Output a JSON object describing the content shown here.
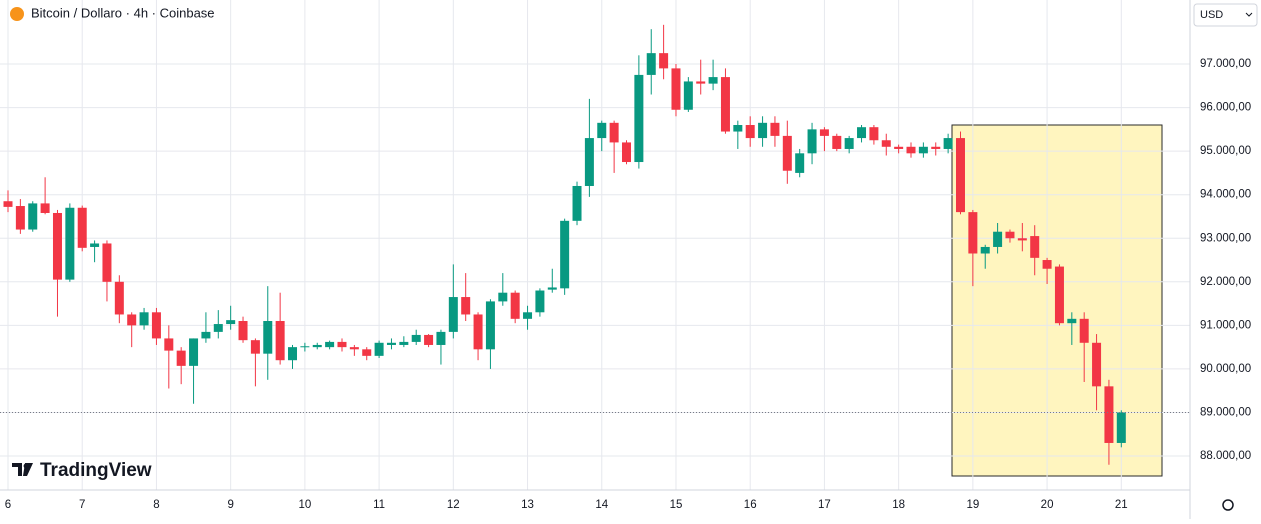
{
  "chart_data": {
    "type": "candlestick",
    "title": "Bitcoin / Dollaro · 4h · Coinbase",
    "currency": "USD",
    "brand": "TradingView",
    "categories": [
      "6",
      null,
      null,
      null,
      null,
      null,
      "7",
      null,
      null,
      null,
      null,
      null,
      "8",
      null,
      null,
      null,
      null,
      null,
      "9",
      null,
      null,
      null,
      null,
      null,
      "10",
      null,
      null,
      null,
      null,
      null,
      "11",
      null,
      null,
      null,
      null,
      null,
      "12",
      null,
      null,
      null,
      null,
      null,
      "13",
      null,
      null,
      null,
      null,
      null,
      "14",
      null,
      null,
      null,
      null,
      null,
      "15",
      null,
      null,
      null,
      null,
      null,
      "16",
      null,
      null,
      null,
      null,
      null,
      "17",
      null,
      null,
      null,
      null,
      null,
      "18",
      null,
      null,
      null,
      null,
      null,
      "19",
      null,
      null,
      null,
      null,
      null,
      "20",
      null,
      null,
      null,
      null,
      null,
      "21"
    ],
    "open": [
      93850,
      93740,
      93200,
      93800,
      93580,
      92050,
      93700,
      92800,
      92880,
      92000,
      91250,
      91000,
      91300,
      90700,
      90420,
      90070,
      90700,
      90850,
      91030,
      91100,
      90660,
      90350,
      91100,
      90200,
      90500,
      90500,
      90500,
      90620,
      90500,
      90450,
      90300,
      90550,
      90550,
      90620,
      90780,
      90550,
      90850,
      91650,
      91250,
      90450,
      91550,
      91750,
      91150,
      91300,
      91820,
      91850,
      93400,
      94200,
      95300,
      95650,
      95200,
      94750,
      96750,
      97250,
      96900,
      95950,
      96600,
      96550,
      96700,
      95450,
      95600,
      95300,
      95650,
      95350,
      94500,
      94950,
      95500,
      95350,
      95050,
      95300,
      95550,
      95250,
      95100,
      95100,
      94950,
      95100,
      95050,
      95300,
      93600,
      92650,
      92800,
      93150,
      93000,
      93050,
      92500,
      92350,
      91050,
      91150,
      90600,
      89600,
      88300
    ],
    "high": [
      94100,
      93900,
      93850,
      94400,
      93650,
      93800,
      93750,
      92950,
      92950,
      92150,
      91300,
      91400,
      91400,
      91000,
      90500,
      90700,
      91300,
      91350,
      91450,
      91200,
      90700,
      91900,
      91750,
      90550,
      90600,
      90600,
      90650,
      90700,
      90550,
      90500,
      90650,
      90700,
      90750,
      90900,
      90800,
      90900,
      92400,
      92200,
      91300,
      91600,
      92200,
      91800,
      91450,
      91850,
      92300,
      93450,
      94300,
      96200,
      95700,
      95700,
      95250,
      97200,
      97800,
      97900,
      97000,
      96700,
      97100,
      97100,
      96900,
      95700,
      95800,
      95800,
      95800,
      95700,
      95050,
      95650,
      95550,
      95400,
      95350,
      95600,
      95600,
      95400,
      95150,
      95200,
      95200,
      95200,
      95400,
      95450,
      93650,
      92850,
      93350,
      93200,
      93350,
      93300,
      92550,
      92400,
      91300,
      91300,
      90800,
      89750,
      89050
    ],
    "low": [
      93600,
      93100,
      93150,
      93550,
      91200,
      92000,
      92700,
      92450,
      91550,
      91050,
      90500,
      90900,
      90550,
      89550,
      89650,
      89200,
      90600,
      90700,
      90900,
      90600,
      89600,
      89750,
      90100,
      90000,
      90400,
      90450,
      90450,
      90400,
      90300,
      90200,
      90250,
      90450,
      90500,
      90550,
      90500,
      90100,
      90700,
      91100,
      90200,
      90000,
      91450,
      91050,
      90900,
      91200,
      91750,
      91700,
      93300,
      93950,
      95000,
      94500,
      94700,
      94600,
      96300,
      96650,
      95800,
      95900,
      96300,
      96400,
      95400,
      95050,
      95100,
      95100,
      95100,
      94250,
      94400,
      94700,
      95000,
      95000,
      94950,
      95200,
      95150,
      94900,
      94950,
      94850,
      94850,
      94900,
      94950,
      93550,
      91900,
      92300,
      92650,
      92900,
      92700,
      92150,
      91950,
      91000,
      90550,
      89700,
      89050,
      87800,
      88200
    ],
    "close": [
      93720,
      93200,
      93800,
      93580,
      92050,
      93700,
      92780,
      92880,
      92000,
      91250,
      91000,
      91300,
      90700,
      90420,
      90070,
      90700,
      90850,
      91030,
      91120,
      90660,
      90350,
      91100,
      90200,
      90500,
      90520,
      90550,
      90620,
      90500,
      90450,
      90300,
      90600,
      90600,
      90620,
      90780,
      90550,
      90850,
      91650,
      91250,
      90450,
      91550,
      91750,
      91150,
      91300,
      91800,
      91870,
      93400,
      94200,
      95300,
      95650,
      95200,
      94750,
      96750,
      97250,
      96900,
      95950,
      96600,
      96550,
      96700,
      95450,
      95600,
      95300,
      95650,
      95350,
      94550,
      94950,
      95500,
      95350,
      95050,
      95300,
      95550,
      95250,
      95100,
      95050,
      94950,
      95100,
      95050,
      95300,
      93600,
      92650,
      92800,
      93150,
      93000,
      92950,
      92550,
      92300,
      91050,
      91150,
      90600,
      89600,
      88300,
      89000
    ],
    "up_color": "#089981",
    "down_color": "#f23645",
    "ylim": [
      87220,
      98470
    ],
    "yticks": [
      {
        "value": 88000,
        "label": "88.000,00"
      },
      {
        "value": 89000,
        "label": "89.000,00"
      },
      {
        "value": 90000,
        "label": "90.000,00"
      },
      {
        "value": 91000,
        "label": "91.000,00"
      },
      {
        "value": 92000,
        "label": "92.000,00"
      },
      {
        "value": 93000,
        "label": "93.000,00"
      },
      {
        "value": 94000,
        "label": "94.000,00"
      },
      {
        "value": 95000,
        "label": "95.000,00"
      },
      {
        "value": 96000,
        "label": "96.000,00"
      },
      {
        "value": 97000,
        "label": "97.000,00"
      }
    ],
    "grid": true
  }
}
